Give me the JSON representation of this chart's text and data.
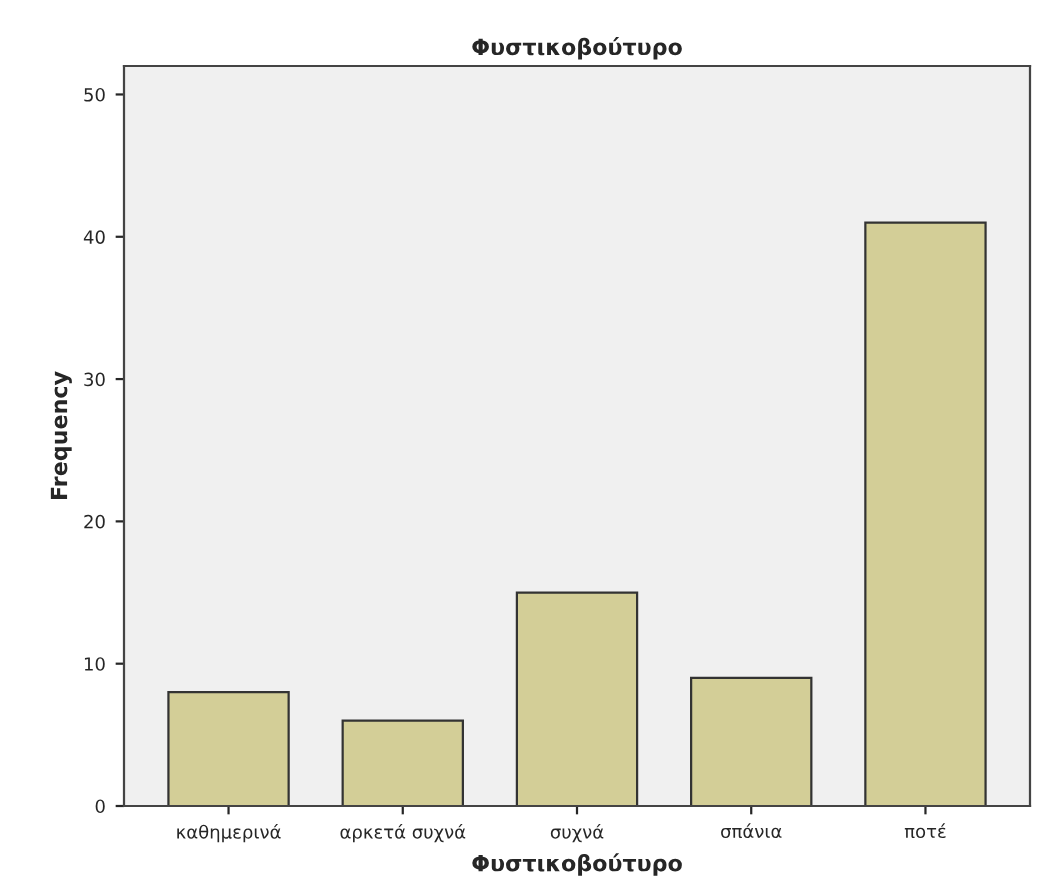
{
  "chart_data": {
    "type": "bar",
    "title": "Φυστικοβούτυρο",
    "xlabel": "Φυστικοβούτυρο",
    "ylabel": "Frequency",
    "categories": [
      "καθημερινά",
      "αρκετά συχνά",
      "συχνά",
      "σπάνια",
      "ποτέ"
    ],
    "values": [
      8,
      6,
      15,
      9,
      41
    ],
    "color": "#d3ce97",
    "ylim": [
      0,
      52
    ],
    "yticks": [
      0,
      10,
      20,
      30,
      40,
      50
    ],
    "grid": false
  }
}
